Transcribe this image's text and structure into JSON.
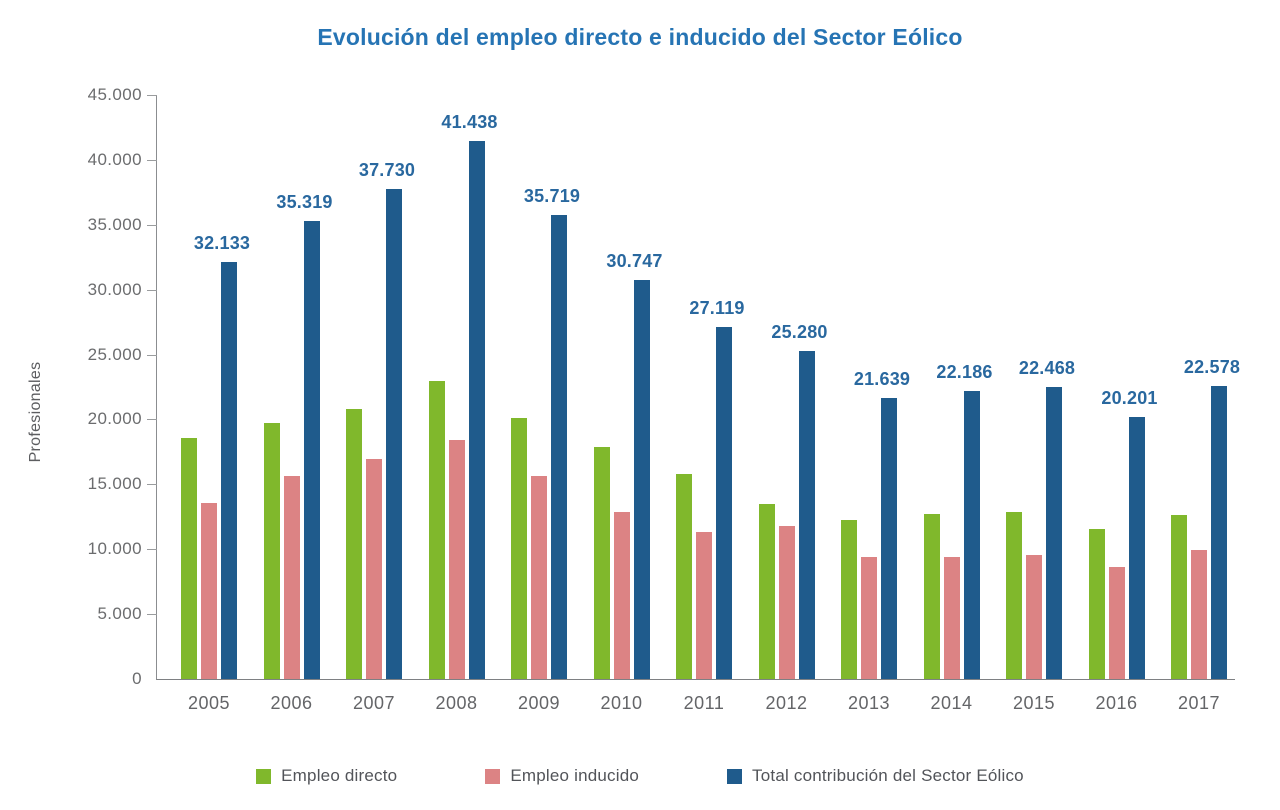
{
  "chart_data": {
    "type": "bar",
    "title": "Evolución del empleo directo e inducido del Sector Eólico",
    "xlabel": "",
    "ylabel": "Profesionales",
    "categories": [
      "2005",
      "2006",
      "2007",
      "2008",
      "2009",
      "2010",
      "2011",
      "2012",
      "2013",
      "2014",
      "2015",
      "2016",
      "2017"
    ],
    "series": [
      {
        "name": "Empleo directo",
        "color": "#80B82C",
        "values": [
          18550,
          19700,
          20800,
          23000,
          20100,
          17900,
          15800,
          13500,
          12250,
          12750,
          12900,
          11550,
          12650
        ]
      },
      {
        "name": "Empleo inducido",
        "color": "#DC8384",
        "values": [
          13583,
          15619,
          16930,
          18438,
          15619,
          12847,
          11319,
          11780,
          9389,
          9436,
          9568,
          8651,
          9928
        ]
      },
      {
        "name": "Total contribución del Sector Eólico",
        "color": "#1F5B8C",
        "values": [
          32133,
          35319,
          37730,
          41438,
          35719,
          30747,
          27119,
          25280,
          21639,
          22186,
          22468,
          20201,
          22578
        ],
        "labels": [
          "32.133",
          "35.319",
          "37.730",
          "41.438",
          "35.719",
          "30.747",
          "27.119",
          "25.280",
          "21.639",
          "22.186",
          "22.468",
          "20.201",
          "22.578"
        ]
      }
    ],
    "ylim": [
      0,
      45000
    ],
    "y_tick_step": 5000,
    "y_tick_labels": [
      "45.000",
      "40.000",
      "35.000",
      "30.000",
      "25.000",
      "20.000",
      "15.000",
      "10.000",
      "5.000",
      "0"
    ],
    "grid": false,
    "legend_position": "bottom",
    "accent_colors": {
      "title": "#2674B4",
      "data_label": "#29689F",
      "axis_text": "#6B6C6E"
    }
  }
}
